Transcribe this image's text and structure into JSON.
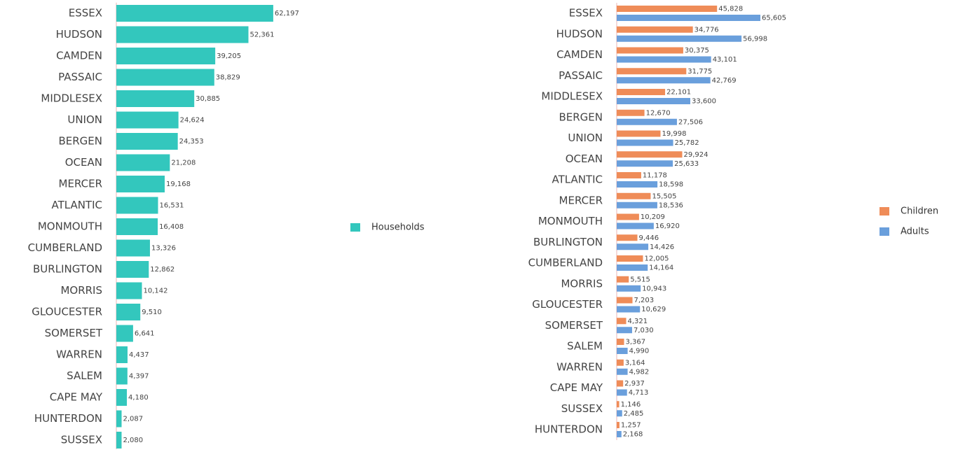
{
  "chart_data": [
    {
      "type": "hbar",
      "categories": [
        "ESSEX",
        "HUDSON",
        "CAMDEN",
        "PASSAIC",
        "MIDDLESEX",
        "UNION",
        "BERGEN",
        "OCEAN",
        "MERCER",
        "ATLANTIC",
        "MONMOUTH",
        "CUMBERLAND",
        "BURLINGTON",
        "MORRIS",
        "GLOUCESTER",
        "SOMERSET",
        "WARREN",
        "SALEM",
        "CAPE MAY",
        "HUNTERDON",
        "SUSSEX"
      ],
      "series": [
        {
          "name": "Households",
          "color": "#33c7bd",
          "values": [
            62197,
            52361,
            39205,
            38829,
            30885,
            24624,
            24353,
            21208,
            19168,
            16531,
            16408,
            13326,
            12862,
            10142,
            9510,
            6641,
            4437,
            4397,
            4180,
            2087,
            2080
          ],
          "value_labels": [
            "62,197",
            "52,361",
            "39,205",
            "38,829",
            "30,885",
            "24,624",
            "24,353",
            "21,208",
            "19,168",
            "16,531",
            "16,408",
            "13,326",
            "12,862",
            "10,142",
            "9,510",
            "6,641",
            "4,437",
            "4,397",
            "4,180",
            "2,087",
            "2,080"
          ]
        }
      ],
      "xlim": [
        0,
        70000
      ],
      "legend": "right"
    },
    {
      "type": "hbar",
      "categories": [
        "ESSEX",
        "HUDSON",
        "CAMDEN",
        "PASSAIC",
        "MIDDLESEX",
        "BERGEN",
        "UNION",
        "OCEAN",
        "ATLANTIC",
        "MERCER",
        "MONMOUTH",
        "BURLINGTON",
        "CUMBERLAND",
        "MORRIS",
        "GLOUCESTER",
        "SOMERSET",
        "SALEM",
        "WARREN",
        "CAPE MAY",
        "SUSSEX",
        "HUNTERDON"
      ],
      "series": [
        {
          "name": "Children",
          "color": "#ef8c58",
          "values": [
            45828,
            34776,
            30375,
            31775,
            22101,
            12670,
            19998,
            29924,
            11178,
            15505,
            10209,
            9446,
            12005,
            5515,
            7203,
            4321,
            3367,
            3164,
            2937,
            1146,
            1257
          ],
          "value_labels": [
            "45,828",
            "34,776",
            "30,375",
            "31,775",
            "22,101",
            "12,670",
            "19,998",
            "29,924",
            "11,178",
            "15,505",
            "10,209",
            "9,446",
            "12,005",
            "5,515",
            "7,203",
            "4,321",
            "3,367",
            "3,164",
            "2,937",
            "1,146",
            "1,257"
          ]
        },
        {
          "name": "Adults",
          "color": "#6a9fdc",
          "values": [
            65605,
            56998,
            43101,
            42769,
            33600,
            27506,
            25782,
            25633,
            18598,
            18536,
            16920,
            14426,
            14164,
            10943,
            10629,
            7030,
            4990,
            4982,
            4713,
            2485,
            2168
          ],
          "value_labels": [
            "65,605",
            "56,998",
            "43,101",
            "42,769",
            "33,600",
            "27,506",
            "25,782",
            "25,633",
            "18,598",
            "18,536",
            "16,920",
            "14,426",
            "14,164",
            "10,943",
            "10,629",
            "7,030",
            "4,990",
            "4,982",
            "4,713",
            "2,485",
            "2,168"
          ]
        }
      ],
      "xlim": [
        0,
        80000
      ],
      "legend": "right"
    }
  ]
}
